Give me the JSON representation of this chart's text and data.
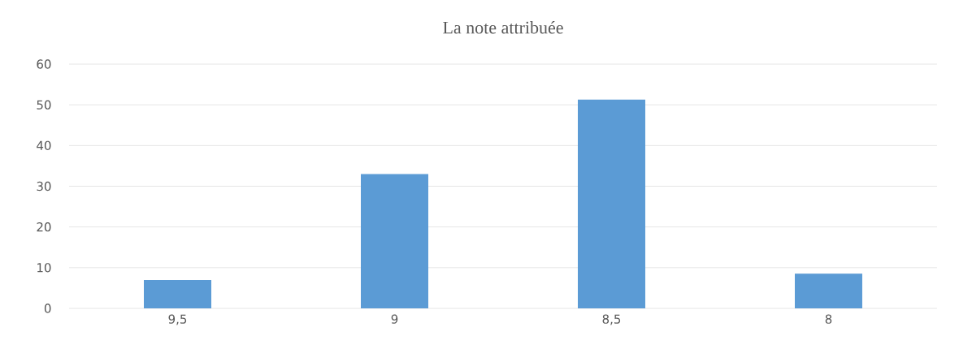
{
  "chart_data": {
    "type": "bar",
    "title": "La note attribuée",
    "categories": [
      "9,5",
      "9",
      "8,5",
      "8"
    ],
    "values": [
      7,
      33,
      51.3,
      8.5
    ],
    "color": "#5b9bd5",
    "ylim": [
      0,
      60
    ],
    "yticks": [
      0,
      10,
      20,
      30,
      40,
      50,
      60
    ],
    "grid": "y"
  }
}
